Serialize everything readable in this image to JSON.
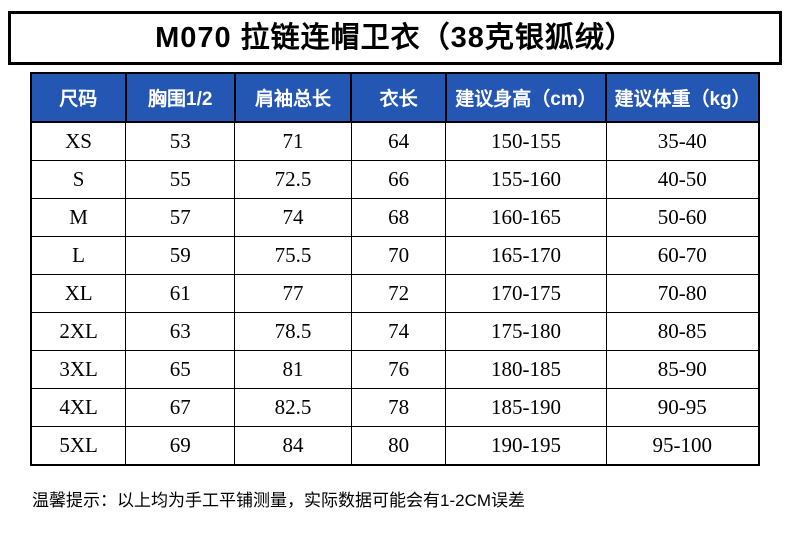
{
  "title": "M070 拉链连帽卫衣（38克银狐绒）",
  "footer_note": "温馨提示：以上均为手工平铺测量，实际数据可能会有1-2CM误差",
  "colors": {
    "header_bg": "#2456b4",
    "header_text": "#ffffff",
    "border": "#000000",
    "body_text": "#000000",
    "background": "#ffffff"
  },
  "chart_data": {
    "type": "table",
    "title": "M070 拉链连帽卫衣（38克银狐绒）",
    "columns": [
      "尺码",
      "胸围1/2",
      "肩袖总长",
      "衣长",
      "建议身高（cm）",
      "建议体重（kg）"
    ],
    "rows": [
      [
        "XS",
        "53",
        "71",
        "64",
        "150-155",
        "35-40"
      ],
      [
        "S",
        "55",
        "72.5",
        "66",
        "155-160",
        "40-50"
      ],
      [
        "M",
        "57",
        "74",
        "68",
        "160-165",
        "50-60"
      ],
      [
        "L",
        "59",
        "75.5",
        "70",
        "165-170",
        "60-70"
      ],
      [
        "XL",
        "61",
        "77",
        "72",
        "170-175",
        "70-80"
      ],
      [
        "2XL",
        "63",
        "78.5",
        "74",
        "175-180",
        "80-85"
      ],
      [
        "3XL",
        "65",
        "81",
        "76",
        "180-185",
        "85-90"
      ],
      [
        "4XL",
        "67",
        "82.5",
        "78",
        "185-190",
        "90-95"
      ],
      [
        "5XL",
        "69",
        "84",
        "80",
        "190-195",
        "95-100"
      ]
    ],
    "footnote": "温馨提示：以上均为手工平铺测量，实际数据可能会有1-2CM误差"
  }
}
